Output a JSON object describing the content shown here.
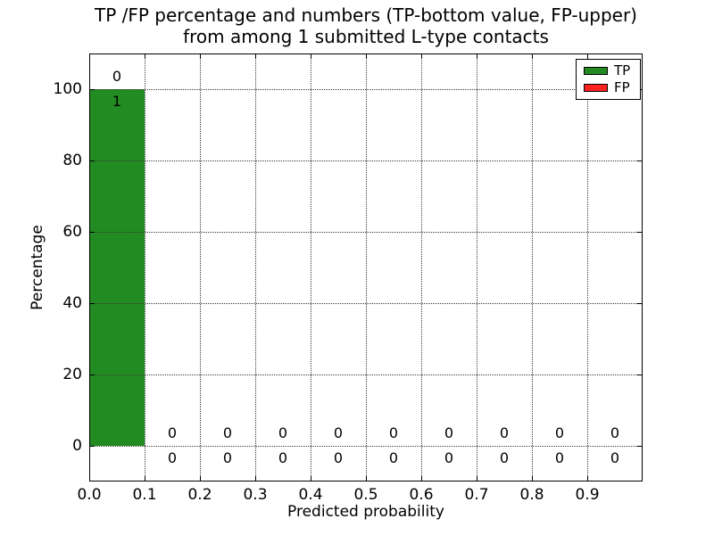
{
  "chart_data": {
    "type": "bar",
    "stacked": true,
    "title": "TP /FP percentage and numbers (TP-bottom value, FP-upper)\nfrom among 1 submitted L-type contacts",
    "title_line1": "TP /FP percentage and numbers (TP-bottom value, FP-upper)",
    "title_line2": "from among 1 submitted L-type contacts",
    "xlabel": "Predicted probability",
    "ylabel": "Percentage",
    "xlim": [
      0.0,
      1.0
    ],
    "ylim": [
      -10,
      110
    ],
    "xticks": [
      0.0,
      0.1,
      0.2,
      0.3,
      0.4,
      0.5,
      0.6,
      0.7,
      0.8,
      0.9
    ],
    "xtick_labels": [
      "0.0",
      "0.1",
      "0.2",
      "0.3",
      "0.4",
      "0.5",
      "0.6",
      "0.7",
      "0.8",
      "0.9"
    ],
    "yticks": [
      0,
      20,
      40,
      60,
      80,
      100
    ],
    "ytick_labels": [
      "0",
      "20",
      "40",
      "60",
      "80",
      "100"
    ],
    "bin_edges": [
      0.0,
      0.1,
      0.2,
      0.3,
      0.4,
      0.5,
      0.6,
      0.7,
      0.8,
      0.9,
      1.0
    ],
    "bin_centers": [
      0.05,
      0.15,
      0.25,
      0.35,
      0.45,
      0.55,
      0.65,
      0.75,
      0.85,
      0.95
    ],
    "grid": "dotted, both axes, drawn above bars",
    "legend_position": "upper right",
    "total_submitted": 1,
    "label_layout": "FP count printed above bar top, TP count printed below bar top",
    "series": [
      {
        "name": "TP",
        "color": "#228B22",
        "percentages": [
          100,
          0,
          0,
          0,
          0,
          0,
          0,
          0,
          0,
          0
        ],
        "counts": [
          1,
          0,
          0,
          0,
          0,
          0,
          0,
          0,
          0,
          0
        ]
      },
      {
        "name": "FP",
        "color": "#FF2020",
        "percentages": [
          0,
          0,
          0,
          0,
          0,
          0,
          0,
          0,
          0,
          0
        ],
        "counts": [
          0,
          0,
          0,
          0,
          0,
          0,
          0,
          0,
          0,
          0
        ]
      }
    ]
  }
}
